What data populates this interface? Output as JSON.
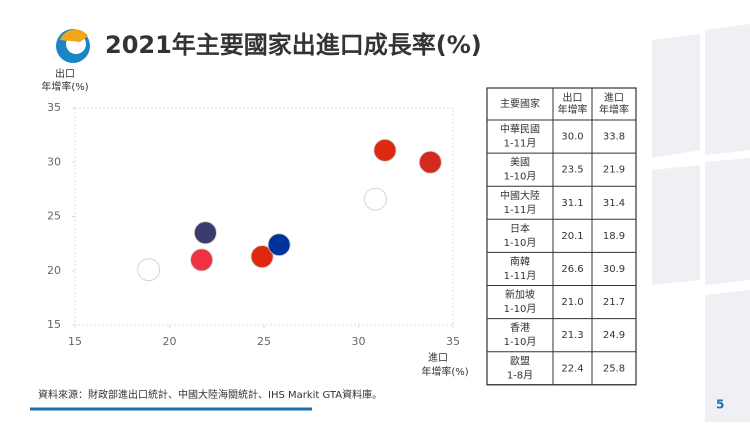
{
  "title": "2021年主要國家出進口成長率(%)",
  "chart_data": {
    "type": "scatter",
    "y_label": [
      "出口",
      "年增率(%)"
    ],
    "x_label": [
      "進口",
      "年增率(%)"
    ],
    "x": [
      33.8,
      21.9,
      31.4,
      18.9,
      30.9,
      21.7,
      24.9,
      25.8
    ],
    "values": [
      30.0,
      23.5,
      31.1,
      20.1,
      26.6,
      21.0,
      21.3,
      22.4
    ],
    "colors": [
      "#d52b1e",
      "#3c3b6e",
      "#de2910",
      "#ffffff",
      "#ffffff",
      "#ef3340",
      "#de2910",
      "#003399"
    ],
    "xlim": [
      15,
      35
    ],
    "ylim": [
      15,
      35
    ],
    "xticks": [
      15,
      20,
      25,
      30,
      35
    ],
    "yticks": [
      15,
      20,
      25,
      30,
      35
    ]
  },
  "table": {
    "header": [
      [
        "主要國家"
      ],
      [
        "出口",
        "年增率"
      ],
      [
        "進口",
        "年增率"
      ]
    ],
    "rows": [
      [
        "中華民國",
        "1-11月",
        "30.0",
        "33.8"
      ],
      [
        "美國",
        "1-10月",
        "23.5",
        "21.9"
      ],
      [
        "中國大陸",
        "1-11月",
        "31.1",
        "31.4"
      ],
      [
        "日本",
        "1-10月",
        "20.1",
        "18.9"
      ],
      [
        "南韓",
        "1-11月",
        "26.6",
        "30.9"
      ],
      [
        "新加坡",
        "1-10月",
        "21.0",
        "21.7"
      ],
      [
        "香港",
        "1-10月",
        "21.3",
        "24.9"
      ],
      [
        "歐盟",
        "1-8月",
        "22.4",
        "25.8"
      ]
    ]
  },
  "source": "資料來源：財政部進出口統計、中國大陸海關統計、IHS Markit GTA資料庫。",
  "page_number": "5"
}
